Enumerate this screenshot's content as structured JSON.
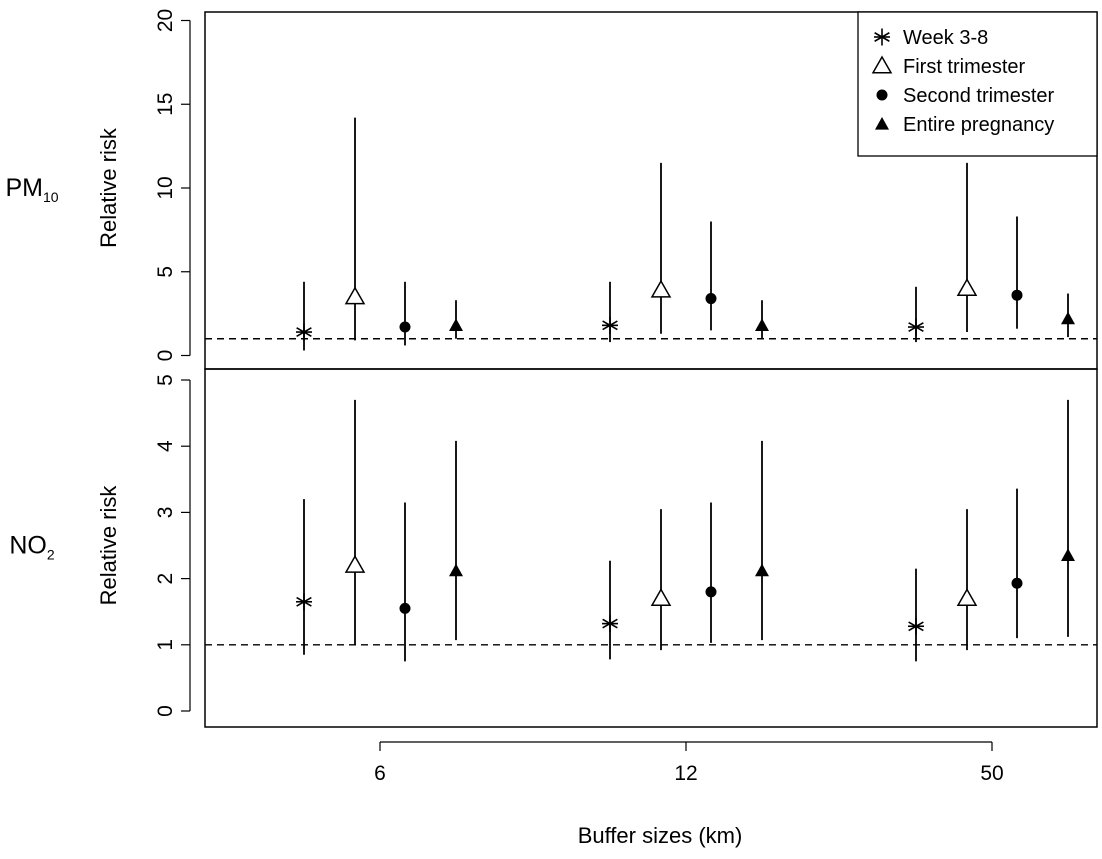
{
  "chart_data": [
    {
      "type": "scatter",
      "pollutant_label": "PM",
      "pollutant_subscript": "10",
      "ylabel": "Relative risk",
      "ylim": [
        0,
        20
      ],
      "yticks": [
        "0",
        "5",
        "10",
        "15",
        "20"
      ],
      "reference_line": 1,
      "categories": [
        "6",
        "12",
        "50"
      ],
      "series": [
        {
          "name": "Week 3-8",
          "marker": "asterisk",
          "points": [
            {
              "x": "6",
              "y": 1.4,
              "lower": 0.3,
              "upper": 4.4
            },
            {
              "x": "12",
              "y": 1.8,
              "lower": 0.8,
              "upper": 4.4
            },
            {
              "x": "50",
              "y": 1.7,
              "lower": 0.8,
              "upper": 4.1
            }
          ]
        },
        {
          "name": "First trimester",
          "marker": "triangle-open",
          "points": [
            {
              "x": "6",
              "y": 3.5,
              "lower": 0.9,
              "upper": 14.2
            },
            {
              "x": "12",
              "y": 3.9,
              "lower": 1.3,
              "upper": 11.5
            },
            {
              "x": "50",
              "y": 4.0,
              "lower": 1.4,
              "upper": 11.5
            }
          ]
        },
        {
          "name": "Second trimester",
          "marker": "circle-filled",
          "points": [
            {
              "x": "6",
              "y": 1.7,
              "lower": 0.6,
              "upper": 4.4
            },
            {
              "x": "12",
              "y": 3.4,
              "lower": 1.5,
              "upper": 8.0
            },
            {
              "x": "50",
              "y": 3.6,
              "lower": 1.6,
              "upper": 8.3
            }
          ]
        },
        {
          "name": "Entire pregnancy",
          "marker": "triangle-filled",
          "points": [
            {
              "x": "6",
              "y": 1.8,
              "lower": 1.0,
              "upper": 3.3
            },
            {
              "x": "12",
              "y": 1.8,
              "lower": 1.0,
              "upper": 3.3
            },
            {
              "x": "50",
              "y": 2.2,
              "lower": 1.1,
              "upper": 3.7
            }
          ]
        }
      ]
    },
    {
      "type": "scatter",
      "pollutant_label": "NO",
      "pollutant_subscript": "2",
      "ylabel": "Relative risk",
      "xlabel": "Buffer sizes (km)",
      "ylim": [
        0,
        5
      ],
      "yticks": [
        "0",
        "1",
        "2",
        "3",
        "4",
        "5"
      ],
      "reference_line": 1,
      "categories": [
        "6",
        "12",
        "50"
      ],
      "series": [
        {
          "name": "Week 3-8",
          "marker": "asterisk",
          "points": [
            {
              "x": "6",
              "y": 1.65,
              "lower": 0.85,
              "upper": 3.2
            },
            {
              "x": "12",
              "y": 1.32,
              "lower": 0.78,
              "upper": 2.27
            },
            {
              "x": "50",
              "y": 1.28,
              "lower": 0.75,
              "upper": 2.15
            }
          ]
        },
        {
          "name": "First trimester",
          "marker": "triangle-open",
          "points": [
            {
              "x": "6",
              "y": 2.2,
              "lower": 1.0,
              "upper": 4.7
            },
            {
              "x": "12",
              "y": 1.7,
              "lower": 0.92,
              "upper": 3.05
            },
            {
              "x": "50",
              "y": 1.7,
              "lower": 0.92,
              "upper": 3.05
            }
          ]
        },
        {
          "name": "Second trimester",
          "marker": "circle-filled",
          "points": [
            {
              "x": "6",
              "y": 1.55,
              "lower": 0.75,
              "upper": 3.15
            },
            {
              "x": "12",
              "y": 1.8,
              "lower": 1.03,
              "upper": 3.15
            },
            {
              "x": "50",
              "y": 1.93,
              "lower": 1.1,
              "upper": 3.36
            }
          ]
        },
        {
          "name": "Entire pregnancy",
          "marker": "triangle-filled",
          "points": [
            {
              "x": "6",
              "y": 2.12,
              "lower": 1.07,
              "upper": 4.08
            },
            {
              "x": "12",
              "y": 2.12,
              "lower": 1.07,
              "upper": 4.08
            },
            {
              "x": "50",
              "y": 2.35,
              "lower": 1.12,
              "upper": 4.7
            }
          ]
        }
      ]
    }
  ]
}
